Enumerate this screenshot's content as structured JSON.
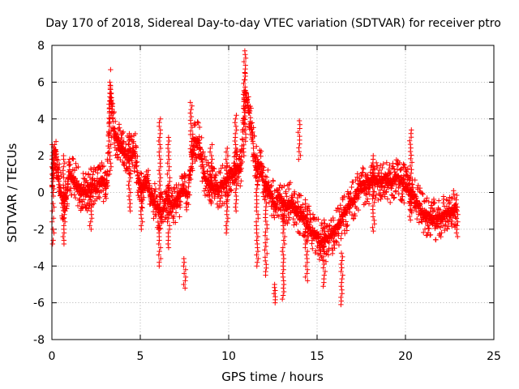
{
  "chart_data": {
    "type": "scatter",
    "title": "Day 170 of 2018, Sidereal Day-to-day VTEC variation (SDTVAR) for receiver ptro",
    "xlabel": "GPS time / hours",
    "ylabel": "SDTVAR / TECUs",
    "xlim": [
      0,
      25
    ],
    "ylim": [
      -8,
      8
    ],
    "xticks": [
      "0",
      "5",
      "10",
      "15",
      "20",
      "25"
    ],
    "yticks": [
      "-8",
      "-6",
      "-4",
      "-2",
      "0",
      "2",
      "4",
      "6",
      "8"
    ],
    "grid": true,
    "marker": "plus",
    "series": [
      {
        "name": "SDTVAR",
        "color": "#ff0000",
        "trend": [
          [
            0.0,
            0.6
          ],
          [
            0.1,
            2.0
          ],
          [
            0.2,
            2.2
          ],
          [
            0.3,
            1.5
          ],
          [
            0.4,
            0.5
          ],
          [
            0.6,
            -0.5
          ],
          [
            0.8,
            -0.2
          ],
          [
            1.0,
            1.0
          ],
          [
            1.3,
            0.6
          ],
          [
            1.6,
            0.1
          ],
          [
            1.9,
            0.0
          ],
          [
            2.2,
            0.3
          ],
          [
            2.5,
            0.2
          ],
          [
            2.8,
            0.6
          ],
          [
            3.1,
            0.4
          ],
          [
            3.3,
            5.8
          ],
          [
            3.5,
            3.3
          ],
          [
            3.8,
            2.6
          ],
          [
            4.1,
            2.2
          ],
          [
            4.4,
            2.0
          ],
          [
            4.7,
            2.1
          ],
          [
            4.9,
            0.6
          ],
          [
            5.1,
            0.2
          ],
          [
            5.3,
            0.5
          ],
          [
            5.6,
            0.0
          ],
          [
            5.9,
            -0.8
          ],
          [
            6.2,
            -1.2
          ],
          [
            6.5,
            -0.2
          ],
          [
            6.8,
            -0.7
          ],
          [
            7.1,
            -0.5
          ],
          [
            7.4,
            0.2
          ],
          [
            7.7,
            -0.1
          ],
          [
            8.0,
            2.7
          ],
          [
            8.3,
            2.8
          ],
          [
            8.6,
            1.0
          ],
          [
            8.9,
            0.4
          ],
          [
            9.2,
            0.2
          ],
          [
            9.5,
            0.3
          ],
          [
            9.8,
            0.5
          ],
          [
            10.1,
            1.0
          ],
          [
            10.4,
            1.2
          ],
          [
            10.7,
            1.4
          ],
          [
            10.9,
            5.6
          ],
          [
            11.2,
            4.2
          ],
          [
            11.5,
            1.5
          ],
          [
            11.8,
            1.2
          ],
          [
            12.0,
            0.6
          ],
          [
            12.3,
            0.0
          ],
          [
            12.6,
            -0.6
          ],
          [
            12.9,
            -0.3
          ],
          [
            13.2,
            -0.8
          ],
          [
            13.5,
            -0.5
          ],
          [
            13.8,
            -1.0
          ],
          [
            14.1,
            -1.3
          ],
          [
            14.4,
            -1.6
          ],
          [
            14.7,
            -2.2
          ],
          [
            15.0,
            -2.4
          ],
          [
            15.3,
            -2.8
          ],
          [
            15.6,
            -2.6
          ],
          [
            15.9,
            -2.2
          ],
          [
            16.2,
            -1.8
          ],
          [
            16.5,
            -1.2
          ],
          [
            16.8,
            -0.8
          ],
          [
            17.1,
            -0.3
          ],
          [
            17.4,
            0.2
          ],
          [
            17.7,
            0.4
          ],
          [
            18.0,
            0.5
          ],
          [
            18.3,
            0.7
          ],
          [
            18.6,
            0.6
          ],
          [
            18.9,
            0.8
          ],
          [
            19.2,
            0.4
          ],
          [
            19.5,
            0.9
          ],
          [
            19.8,
            0.6
          ],
          [
            20.1,
            0.2
          ],
          [
            20.4,
            -0.1
          ],
          [
            20.7,
            -0.6
          ],
          [
            21.0,
            -1.2
          ],
          [
            21.4,
            -1.4
          ],
          [
            21.8,
            -1.5
          ],
          [
            22.2,
            -1.2
          ],
          [
            22.6,
            -1.0
          ],
          [
            22.9,
            -0.8
          ]
        ],
        "excursions": [
          {
            "x": 0.05,
            "ymin": -2.8,
            "ymax": 2.6
          },
          {
            "x": 0.7,
            "ymin": -2.8,
            "ymax": 2.0
          },
          {
            "x": 2.2,
            "ymin": -2.0,
            "ymax": 0.4
          },
          {
            "x": 3.3,
            "ymin": 1.0,
            "ymax": 6.0
          },
          {
            "x": 4.4,
            "ymin": -1.0,
            "ymax": 3.2
          },
          {
            "x": 5.1,
            "ymin": -2.0,
            "ymax": 0.6
          },
          {
            "x": 6.1,
            "ymin": -4.0,
            "ymax": 4.0
          },
          {
            "x": 6.6,
            "ymin": -3.0,
            "ymax": 3.0
          },
          {
            "x": 7.5,
            "ymin": -5.2,
            "ymax": -3.6
          },
          {
            "x": 7.9,
            "ymin": 1.6,
            "ymax": 4.9
          },
          {
            "x": 9.0,
            "ymin": -0.6,
            "ymax": 2.6
          },
          {
            "x": 9.9,
            "ymin": -2.2,
            "ymax": 2.4
          },
          {
            "x": 10.4,
            "ymin": -1.0,
            "ymax": 4.2
          },
          {
            "x": 10.9,
            "ymin": 2.0,
            "ymax": 7.7
          },
          {
            "x": 11.6,
            "ymin": -4.0,
            "ymax": 1.8
          },
          {
            "x": 12.1,
            "ymin": -4.5,
            "ymax": 0.2
          },
          {
            "x": 12.6,
            "ymin": -6.0,
            "ymax": -5.0
          },
          {
            "x": 13.1,
            "ymin": -5.8,
            "ymax": -0.4
          },
          {
            "x": 14.0,
            "ymin": 1.8,
            "ymax": 3.9
          },
          {
            "x": 14.4,
            "ymin": -4.8,
            "ymax": -0.4
          },
          {
            "x": 15.4,
            "ymin": -5.1,
            "ymax": -1.5
          },
          {
            "x": 16.4,
            "ymin": -6.1,
            "ymax": -3.3
          },
          {
            "x": 18.2,
            "ymin": -2.1,
            "ymax": 2.0
          },
          {
            "x": 20.3,
            "ymin": -1.5,
            "ymax": 3.4
          },
          {
            "x": 22.9,
            "ymin": -2.4,
            "ymax": -0.6
          }
        ]
      }
    ]
  }
}
